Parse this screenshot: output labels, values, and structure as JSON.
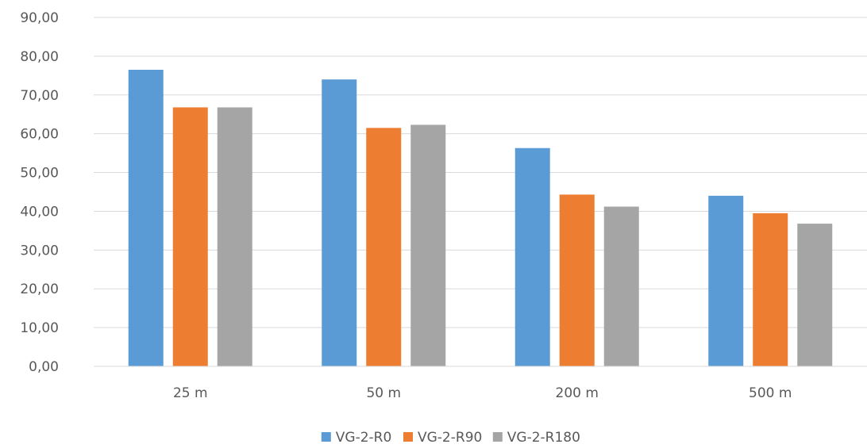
{
  "chart_data": {
    "type": "bar",
    "title": "",
    "xlabel": "",
    "ylabel": "",
    "categories": [
      "25 m",
      "50 m",
      "200 m",
      "500 m"
    ],
    "series": [
      {
        "name": "VG-2-R0",
        "color": "#5b9bd5",
        "values": [
          76.5,
          74.0,
          56.3,
          44.0
        ]
      },
      {
        "name": "VG-2-R90",
        "color": "#ed7d31",
        "values": [
          66.8,
          61.5,
          44.3,
          39.5
        ]
      },
      {
        "name": "VG-2-R180",
        "color": "#a5a5a5",
        "values": [
          66.8,
          62.3,
          41.2,
          36.8
        ]
      }
    ],
    "ylim": [
      0,
      90
    ],
    "yticks": [
      "0,00",
      "10,00",
      "20,00",
      "30,00",
      "40,00",
      "50,00",
      "60,00",
      "70,00",
      "80,00",
      "90,00"
    ],
    "grid": true,
    "legend_position": "bottom"
  }
}
